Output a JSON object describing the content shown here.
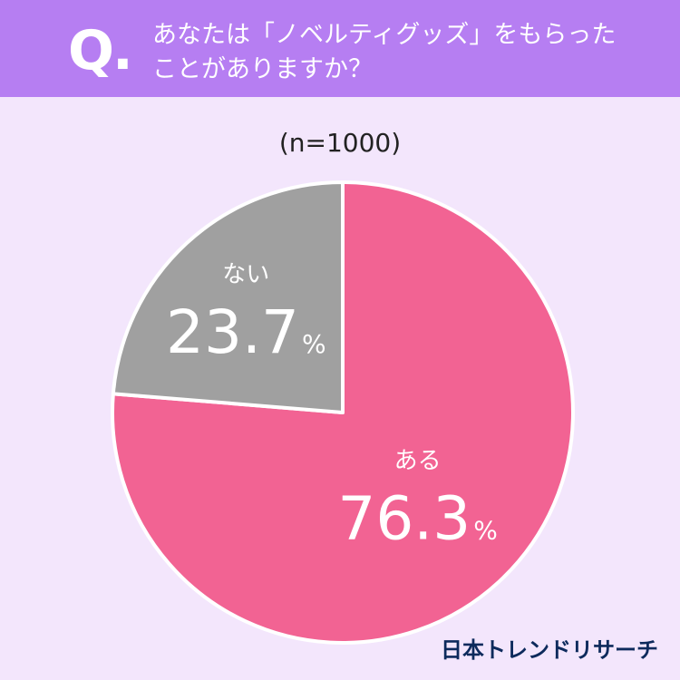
{
  "header": {
    "q_mark": "Q.",
    "question": "あなたは「ノベルティグッズ」をもらった\nことがありますか？"
  },
  "sample": "(n=1000)",
  "logo": "日本トレンドリサーチ",
  "colors": {
    "header_bg": "#b67ef2",
    "page_bg": "#f3e6fc",
    "yes": "#f26393",
    "no": "#a0a0a0"
  },
  "chart_data": {
    "type": "pie",
    "slices": [
      {
        "label": "ある",
        "value": 76.3,
        "display": "76.3",
        "unit": "%",
        "color": "#f26393"
      },
      {
        "label": "ない",
        "value": 23.7,
        "display": "23.7",
        "unit": "%",
        "color": "#a0a0a0"
      }
    ]
  }
}
